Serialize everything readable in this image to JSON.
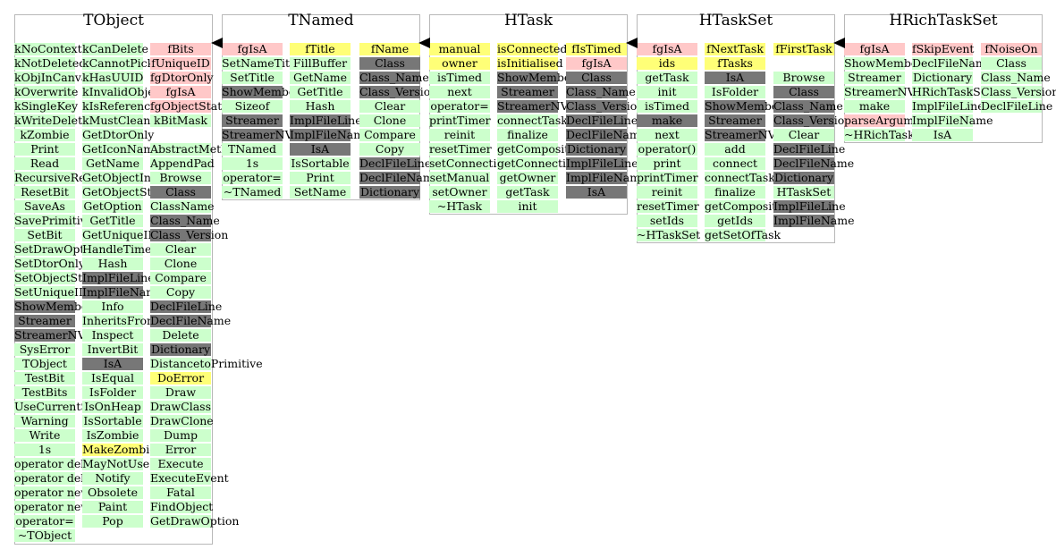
{
  "classes": [
    {
      "id": "tobject",
      "title": "TObject",
      "columns": [
        [
          {
            "t": "kNoContextMenu",
            "s": "mem"
          },
          {
            "t": "kNotDeleted",
            "s": "mem"
          },
          {
            "t": "kObjInCanvas",
            "s": "mem"
          },
          {
            "t": "kOverwrite",
            "s": "mem"
          },
          {
            "t": "kSingleKey",
            "s": "mem"
          },
          {
            "t": "kWriteDelete",
            "s": "mem"
          },
          {
            "t": "kZombie",
            "s": "mem"
          },
          {
            "t": "Print",
            "s": "mem"
          },
          {
            "t": "Read",
            "s": "mem"
          },
          {
            "t": "RecursiveRemove",
            "s": "mem"
          },
          {
            "t": "ResetBit",
            "s": "mem"
          },
          {
            "t": "SaveAs",
            "s": "mem"
          },
          {
            "t": "SavePrimitive",
            "s": "mem"
          },
          {
            "t": "SetBit",
            "s": "mem"
          },
          {
            "t": "SetDrawOption",
            "s": "mem"
          },
          {
            "t": "SetDtorOnly",
            "s": "mem"
          },
          {
            "t": "SetObjectStat",
            "s": "mem"
          },
          {
            "t": "SetUniqueID",
            "s": "mem"
          },
          {
            "t": "ShowMembers",
            "s": "gray"
          },
          {
            "t": "Streamer",
            "s": "gray"
          },
          {
            "t": "StreamerNVirtual",
            "s": "gray"
          },
          {
            "t": "SysError",
            "s": "mem"
          },
          {
            "t": "TObject",
            "s": "mem"
          },
          {
            "t": "TestBit",
            "s": "mem"
          },
          {
            "t": "TestBits",
            "s": "mem"
          },
          {
            "t": "UseCurrentStyle",
            "s": "mem"
          },
          {
            "t": "Warning",
            "s": "mem"
          },
          {
            "t": "Write",
            "s": "mem"
          },
          {
            "t": "1s",
            "s": "mem"
          },
          {
            "t": "operator delete",
            "s": "mem"
          },
          {
            "t": "operator delete[]",
            "s": "mem"
          },
          {
            "t": "operator new",
            "s": "mem"
          },
          {
            "t": "operator new[]",
            "s": "mem"
          },
          {
            "t": "operator=",
            "s": "mem"
          },
          {
            "t": "~TObject",
            "s": "mem"
          }
        ],
        [
          {
            "t": "kCanDelete",
            "s": "mem"
          },
          {
            "t": "kCannotPick",
            "s": "mem"
          },
          {
            "t": "kHasUUID",
            "s": "mem"
          },
          {
            "t": "kInvalidObject",
            "s": "mem"
          },
          {
            "t": "kIsReferenced",
            "s": "mem"
          },
          {
            "t": "kMustCleanup",
            "s": "mem"
          },
          {
            "t": "GetDtorOnly",
            "s": "mem"
          },
          {
            "t": "GetIconName",
            "s": "mem"
          },
          {
            "t": "GetName",
            "s": "mem"
          },
          {
            "t": "GetObjectInfo",
            "s": "mem"
          },
          {
            "t": "GetObjectStat",
            "s": "mem"
          },
          {
            "t": "GetOption",
            "s": "mem"
          },
          {
            "t": "GetTitle",
            "s": "mem"
          },
          {
            "t": "GetUniqueID",
            "s": "mem"
          },
          {
            "t": "HandleTimer",
            "s": "mem"
          },
          {
            "t": "Hash",
            "s": "mem"
          },
          {
            "t": "ImplFileLine",
            "s": "gray"
          },
          {
            "t": "ImplFileName",
            "s": "gray"
          },
          {
            "t": "Info",
            "s": "mem"
          },
          {
            "t": "InheritsFrom",
            "s": "mem"
          },
          {
            "t": "Inspect",
            "s": "mem"
          },
          {
            "t": "InvertBit",
            "s": "mem"
          },
          {
            "t": "IsA",
            "s": "gray"
          },
          {
            "t": "IsEqual",
            "s": "mem"
          },
          {
            "t": "IsFolder",
            "s": "mem"
          },
          {
            "t": "IsOnHeap",
            "s": "mem"
          },
          {
            "t": "IsSortable",
            "s": "mem"
          },
          {
            "t": "IsZombie",
            "s": "mem"
          },
          {
            "t": "MakeZombie",
            "s": "yel"
          },
          {
            "t": "MayNotUse",
            "s": "mem"
          },
          {
            "t": "Notify",
            "s": "mem"
          },
          {
            "t": "Obsolete",
            "s": "mem"
          },
          {
            "t": "Paint",
            "s": "mem"
          },
          {
            "t": "Pop",
            "s": "mem"
          }
        ],
        [
          {
            "t": "fBits",
            "s": "pink"
          },
          {
            "t": "fUniqueID",
            "s": "pink"
          },
          {
            "t": "fgDtorOnly",
            "s": "pink"
          },
          {
            "t": "fgIsA",
            "s": "pink"
          },
          {
            "t": "fgObjectStat",
            "s": "pink"
          },
          {
            "t": "kBitMask",
            "s": "mem"
          },
          {
            "t": "",
            "s": "none"
          },
          {
            "t": "AbstractMethod",
            "s": "mem"
          },
          {
            "t": "AppendPad",
            "s": "mem"
          },
          {
            "t": "Browse",
            "s": "mem"
          },
          {
            "t": "Class",
            "s": "gray"
          },
          {
            "t": "ClassName",
            "s": "mem"
          },
          {
            "t": "Class_Name",
            "s": "gray"
          },
          {
            "t": "Class_Version",
            "s": "gray"
          },
          {
            "t": "Clear",
            "s": "mem"
          },
          {
            "t": "Clone",
            "s": "mem"
          },
          {
            "t": "Compare",
            "s": "mem"
          },
          {
            "t": "Copy",
            "s": "mem"
          },
          {
            "t": "DeclFileLine",
            "s": "gray"
          },
          {
            "t": "DeclFileName",
            "s": "gray"
          },
          {
            "t": "Delete",
            "s": "mem"
          },
          {
            "t": "Dictionary",
            "s": "gray"
          },
          {
            "t": "DistancetoPrimitive",
            "s": "mem"
          },
          {
            "t": "DoError",
            "s": "yel"
          },
          {
            "t": "Draw",
            "s": "mem"
          },
          {
            "t": "DrawClass",
            "s": "mem"
          },
          {
            "t": "DrawClone",
            "s": "mem"
          },
          {
            "t": "Dump",
            "s": "mem"
          },
          {
            "t": "Error",
            "s": "mem"
          },
          {
            "t": "Execute",
            "s": "mem"
          },
          {
            "t": "ExecuteEvent",
            "s": "mem"
          },
          {
            "t": "Fatal",
            "s": "mem"
          },
          {
            "t": "FindObject",
            "s": "mem"
          },
          {
            "t": "GetDrawOption",
            "s": "mem"
          }
        ]
      ]
    },
    {
      "id": "tnamed",
      "title": "TNamed",
      "columns": [
        [
          {
            "t": "fgIsA",
            "s": "pink"
          },
          {
            "t": "SetNameTitle",
            "s": "mem"
          },
          {
            "t": "SetTitle",
            "s": "mem"
          },
          {
            "t": "ShowMembers",
            "s": "gray"
          },
          {
            "t": "Sizeof",
            "s": "mem"
          },
          {
            "t": "Streamer",
            "s": "gray"
          },
          {
            "t": "StreamerNVirtual",
            "s": "gray"
          },
          {
            "t": "TNamed",
            "s": "mem"
          },
          {
            "t": "1s",
            "s": "mem"
          },
          {
            "t": "operator=",
            "s": "mem"
          },
          {
            "t": "~TNamed",
            "s": "mem"
          }
        ],
        [
          {
            "t": "fTitle",
            "s": "yel"
          },
          {
            "t": "FillBuffer",
            "s": "mem"
          },
          {
            "t": "GetName",
            "s": "mem"
          },
          {
            "t": "GetTitle",
            "s": "mem"
          },
          {
            "t": "Hash",
            "s": "mem"
          },
          {
            "t": "ImplFileLine",
            "s": "gray"
          },
          {
            "t": "ImplFileName",
            "s": "gray"
          },
          {
            "t": "IsA",
            "s": "gray"
          },
          {
            "t": "IsSortable",
            "s": "mem"
          },
          {
            "t": "Print",
            "s": "mem"
          },
          {
            "t": "SetName",
            "s": "mem"
          }
        ],
        [
          {
            "t": "fName",
            "s": "yel"
          },
          {
            "t": "Class",
            "s": "gray"
          },
          {
            "t": "Class_Name",
            "s": "gray"
          },
          {
            "t": "Class_Version",
            "s": "gray"
          },
          {
            "t": "Clear",
            "s": "mem"
          },
          {
            "t": "Clone",
            "s": "mem"
          },
          {
            "t": "Compare",
            "s": "mem"
          },
          {
            "t": "Copy",
            "s": "mem"
          },
          {
            "t": "DeclFileLine",
            "s": "gray"
          },
          {
            "t": "DeclFileName",
            "s": "gray"
          },
          {
            "t": "Dictionary",
            "s": "gray"
          }
        ]
      ]
    },
    {
      "id": "htask",
      "title": "HTask",
      "columns": [
        [
          {
            "t": "manual",
            "s": "yel"
          },
          {
            "t": "owner",
            "s": "yel"
          },
          {
            "t": "isTimed",
            "s": "mem"
          },
          {
            "t": "next",
            "s": "mem"
          },
          {
            "t": "operator=",
            "s": "mem"
          },
          {
            "t": "printTimer",
            "s": "mem"
          },
          {
            "t": "reinit",
            "s": "mem"
          },
          {
            "t": "resetTimer",
            "s": "mem"
          },
          {
            "t": "setConnections",
            "s": "mem"
          },
          {
            "t": "setManual",
            "s": "mem"
          },
          {
            "t": "setOwner",
            "s": "mem"
          },
          {
            "t": "~HTask",
            "s": "mem"
          }
        ],
        [
          {
            "t": "isConnected",
            "s": "yel"
          },
          {
            "t": "isInitialised",
            "s": "yel"
          },
          {
            "t": "ShowMembers",
            "s": "gray"
          },
          {
            "t": "Streamer",
            "s": "gray"
          },
          {
            "t": "StreamerNVirtual",
            "s": "gray"
          },
          {
            "t": "connectTask",
            "s": "mem"
          },
          {
            "t": "finalize",
            "s": "mem"
          },
          {
            "t": "getComposite",
            "s": "mem"
          },
          {
            "t": "getConnections",
            "s": "mem"
          },
          {
            "t": "getOwner",
            "s": "mem"
          },
          {
            "t": "getTask",
            "s": "mem"
          },
          {
            "t": "init",
            "s": "mem"
          }
        ],
        [
          {
            "t": "fIsTimed",
            "s": "yel"
          },
          {
            "t": "fgIsA",
            "s": "pink"
          },
          {
            "t": "Class",
            "s": "gray"
          },
          {
            "t": "Class_Name",
            "s": "gray"
          },
          {
            "t": "Class_Version",
            "s": "gray"
          },
          {
            "t": "DeclFileLine",
            "s": "gray"
          },
          {
            "t": "DeclFileName",
            "s": "gray"
          },
          {
            "t": "Dictionary",
            "s": "gray"
          },
          {
            "t": "ImplFileLine",
            "s": "gray"
          },
          {
            "t": "ImplFileName",
            "s": "gray"
          },
          {
            "t": "IsA",
            "s": "gray"
          }
        ]
      ]
    },
    {
      "id": "htaskset",
      "title": "HTaskSet",
      "columns": [
        [
          {
            "t": "fgIsA",
            "s": "pink"
          },
          {
            "t": "ids",
            "s": "yel"
          },
          {
            "t": "getTask",
            "s": "mem"
          },
          {
            "t": "init",
            "s": "mem"
          },
          {
            "t": "isTimed",
            "s": "mem"
          },
          {
            "t": "make",
            "s": "gray"
          },
          {
            "t": "next",
            "s": "mem"
          },
          {
            "t": "operator()",
            "s": "mem"
          },
          {
            "t": "print",
            "s": "mem"
          },
          {
            "t": "printTimer",
            "s": "mem"
          },
          {
            "t": "reinit",
            "s": "mem"
          },
          {
            "t": "resetTimer",
            "s": "mem"
          },
          {
            "t": "setIds",
            "s": "mem"
          },
          {
            "t": "~HTaskSet",
            "s": "mem"
          }
        ],
        [
          {
            "t": "fNextTask",
            "s": "yel"
          },
          {
            "t": "fTasks",
            "s": "yel"
          },
          {
            "t": "IsA",
            "s": "gray"
          },
          {
            "t": "IsFolder",
            "s": "mem"
          },
          {
            "t": "ShowMembers",
            "s": "gray"
          },
          {
            "t": "Streamer",
            "s": "gray"
          },
          {
            "t": "StreamerNVirtual",
            "s": "gray"
          },
          {
            "t": "add",
            "s": "mem"
          },
          {
            "t": "connect",
            "s": "mem"
          },
          {
            "t": "connectTask",
            "s": "mem"
          },
          {
            "t": "finalize",
            "s": "mem"
          },
          {
            "t": "getComposite",
            "s": "mem"
          },
          {
            "t": "getIds",
            "s": "mem"
          },
          {
            "t": "getSetOfTask",
            "s": "mem"
          }
        ],
        [
          {
            "t": "fFirstTask",
            "s": "yel"
          },
          {
            "t": "",
            "s": "none"
          },
          {
            "t": "Browse",
            "s": "mem"
          },
          {
            "t": "Class",
            "s": "gray"
          },
          {
            "t": "Class_Name",
            "s": "gray"
          },
          {
            "t": "Class_Version",
            "s": "gray"
          },
          {
            "t": "Clear",
            "s": "mem"
          },
          {
            "t": "DeclFileLine",
            "s": "gray"
          },
          {
            "t": "DeclFileName",
            "s": "gray"
          },
          {
            "t": "Dictionary",
            "s": "gray"
          },
          {
            "t": "HTaskSet",
            "s": "mem"
          },
          {
            "t": "ImplFileLine",
            "s": "gray"
          },
          {
            "t": "ImplFileName",
            "s": "gray"
          }
        ]
      ]
    },
    {
      "id": "hrichtaskset",
      "title": "HRichTaskSet",
      "columns": [
        [
          {
            "t": "fgIsA",
            "s": "pink"
          },
          {
            "t": "ShowMembers",
            "s": "mem"
          },
          {
            "t": "Streamer",
            "s": "mem"
          },
          {
            "t": "StreamerNVirtual",
            "s": "mem"
          },
          {
            "t": "make",
            "s": "mem"
          },
          {
            "t": "parseArguments",
            "s": "pink"
          },
          {
            "t": "~HRichTaskSet",
            "s": "mem"
          }
        ],
        [
          {
            "t": "fSkipEvent",
            "s": "pink"
          },
          {
            "t": "DeclFileName",
            "s": "mem"
          },
          {
            "t": "Dictionary",
            "s": "mem"
          },
          {
            "t": "HRichTaskSet",
            "s": "mem"
          },
          {
            "t": "ImplFileLine",
            "s": "mem"
          },
          {
            "t": "ImplFileName",
            "s": "mem"
          },
          {
            "t": "IsA",
            "s": "mem"
          }
        ],
        [
          {
            "t": "fNoiseOn",
            "s": "pink"
          },
          {
            "t": "Class",
            "s": "mem"
          },
          {
            "t": "Class_Name",
            "s": "mem"
          },
          {
            "t": "Class_Version",
            "s": "mem"
          },
          {
            "t": "DeclFileLine",
            "s": "mem"
          }
        ]
      ]
    }
  ],
  "colors": {
    "member": "#ccffcc",
    "private": "#ffc8c8",
    "protected": "#ffff77",
    "generated": "#777777",
    "arrow": "#000000",
    "border": "#b8b8b8"
  }
}
